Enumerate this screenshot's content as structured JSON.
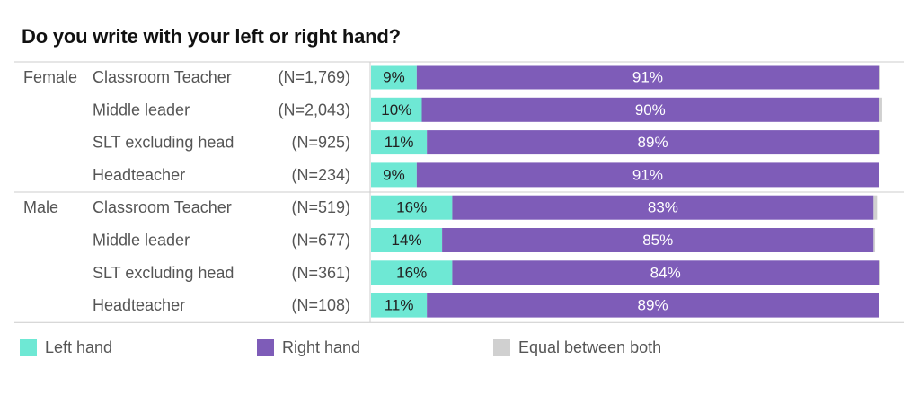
{
  "title": "Do you write with your left or right hand?",
  "colors": {
    "left": "#6ee8d4",
    "right": "#7e5cb8",
    "equal": "#d0d0d0",
    "divider": "#cccccc",
    "text": "#555555"
  },
  "legend": [
    {
      "key": "left",
      "label": "Left hand"
    },
    {
      "key": "right",
      "label": "Right hand"
    },
    {
      "key": "equal",
      "label": "Equal between both"
    }
  ],
  "chart_data": {
    "type": "bar",
    "orientation": "horizontal",
    "stacked": true,
    "series_names": [
      "Left hand",
      "Right hand",
      "Equal between both"
    ],
    "groups": [
      {
        "name": "Female",
        "rows": [
          {
            "role": "Classroom Teacher",
            "n": "(N=1,769)",
            "left": 9,
            "right": 91,
            "equal": 0.3,
            "left_label": "9%",
            "right_label": "91%"
          },
          {
            "role": "Middle leader",
            "n": "(N=2,043)",
            "left": 10,
            "right": 90,
            "equal": 0.7,
            "left_label": "10%",
            "right_label": "90%"
          },
          {
            "role": "SLT excluding head",
            "n": "(N=925)",
            "left": 11,
            "right": 89,
            "equal": 0.3,
            "left_label": "11%",
            "right_label": "89%"
          },
          {
            "role": "Headteacher",
            "n": "(N=234)",
            "left": 9,
            "right": 91,
            "equal": 0,
            "left_label": "9%",
            "right_label": "91%"
          }
        ]
      },
      {
        "name": "Male",
        "rows": [
          {
            "role": "Classroom Teacher",
            "n": "(N=519)",
            "left": 16,
            "right": 83,
            "equal": 0.7,
            "left_label": "16%",
            "right_label": "83%"
          },
          {
            "role": "Middle leader",
            "n": "(N=677)",
            "left": 14,
            "right": 85,
            "equal": 0.3,
            "left_label": "14%",
            "right_label": "85%"
          },
          {
            "role": "SLT excluding head",
            "n": "(N=361)",
            "left": 16,
            "right": 84,
            "equal": 0.3,
            "left_label": "16%",
            "right_label": "84%"
          },
          {
            "role": "Headteacher",
            "n": "(N=108)",
            "left": 11,
            "right": 89,
            "equal": 0,
            "left_label": "11%",
            "right_label": "89%"
          }
        ]
      }
    ]
  }
}
